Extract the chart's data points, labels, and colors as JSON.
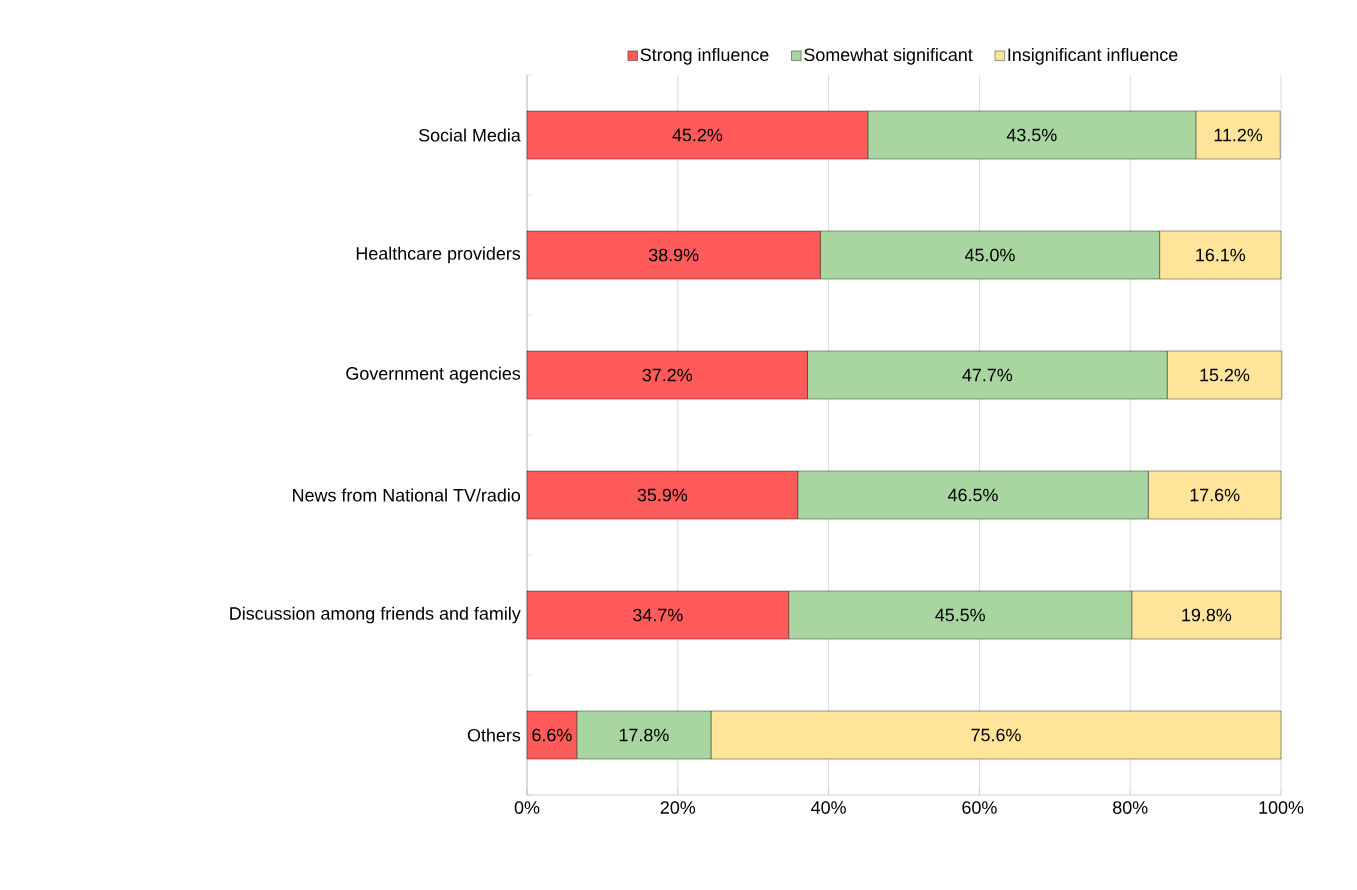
{
  "chart_data": {
    "type": "bar",
    "orientation": "horizontal",
    "stacked": true,
    "categories": [
      "Social Media",
      "Healthcare providers",
      "Government agencies",
      "News from National TV/radio",
      "Discussion among friends and family",
      "Others"
    ],
    "series": [
      {
        "name": "Strong influence",
        "color": "#ff5b5b",
        "values": [
          45.2,
          38.9,
          37.2,
          35.9,
          34.7,
          6.6
        ],
        "value_labels": [
          "45.2%",
          "38.9%",
          "37.2%",
          "35.9%",
          "34.7%",
          "6.6%"
        ]
      },
      {
        "name": "Somewhat significant",
        "color": "#a9d6a0",
        "values": [
          43.5,
          45.0,
          47.7,
          46.5,
          45.5,
          17.8
        ],
        "value_labels": [
          "43.5%",
          "45.0%",
          "47.7%",
          "46.5%",
          "45.5%",
          "17.8%"
        ]
      },
      {
        "name": "Insignificant influence",
        "color": "#ffe49a",
        "values": [
          11.2,
          16.1,
          15.2,
          17.6,
          19.8,
          75.6
        ],
        "value_labels": [
          "11.2%",
          "16.1%",
          "15.2%",
          "17.6%",
          "19.8%",
          "75.6%"
        ]
      }
    ],
    "xlim": [
      0,
      100
    ],
    "xticks": [
      {
        "value": 0,
        "label": "0%"
      },
      {
        "value": 20,
        "label": "20%"
      },
      {
        "value": 40,
        "label": "40%"
      },
      {
        "value": 60,
        "label": "60%"
      },
      {
        "value": 80,
        "label": "80%"
      },
      {
        "value": 100,
        "label": "100%"
      }
    ],
    "grid": "x",
    "legend": "top"
  }
}
